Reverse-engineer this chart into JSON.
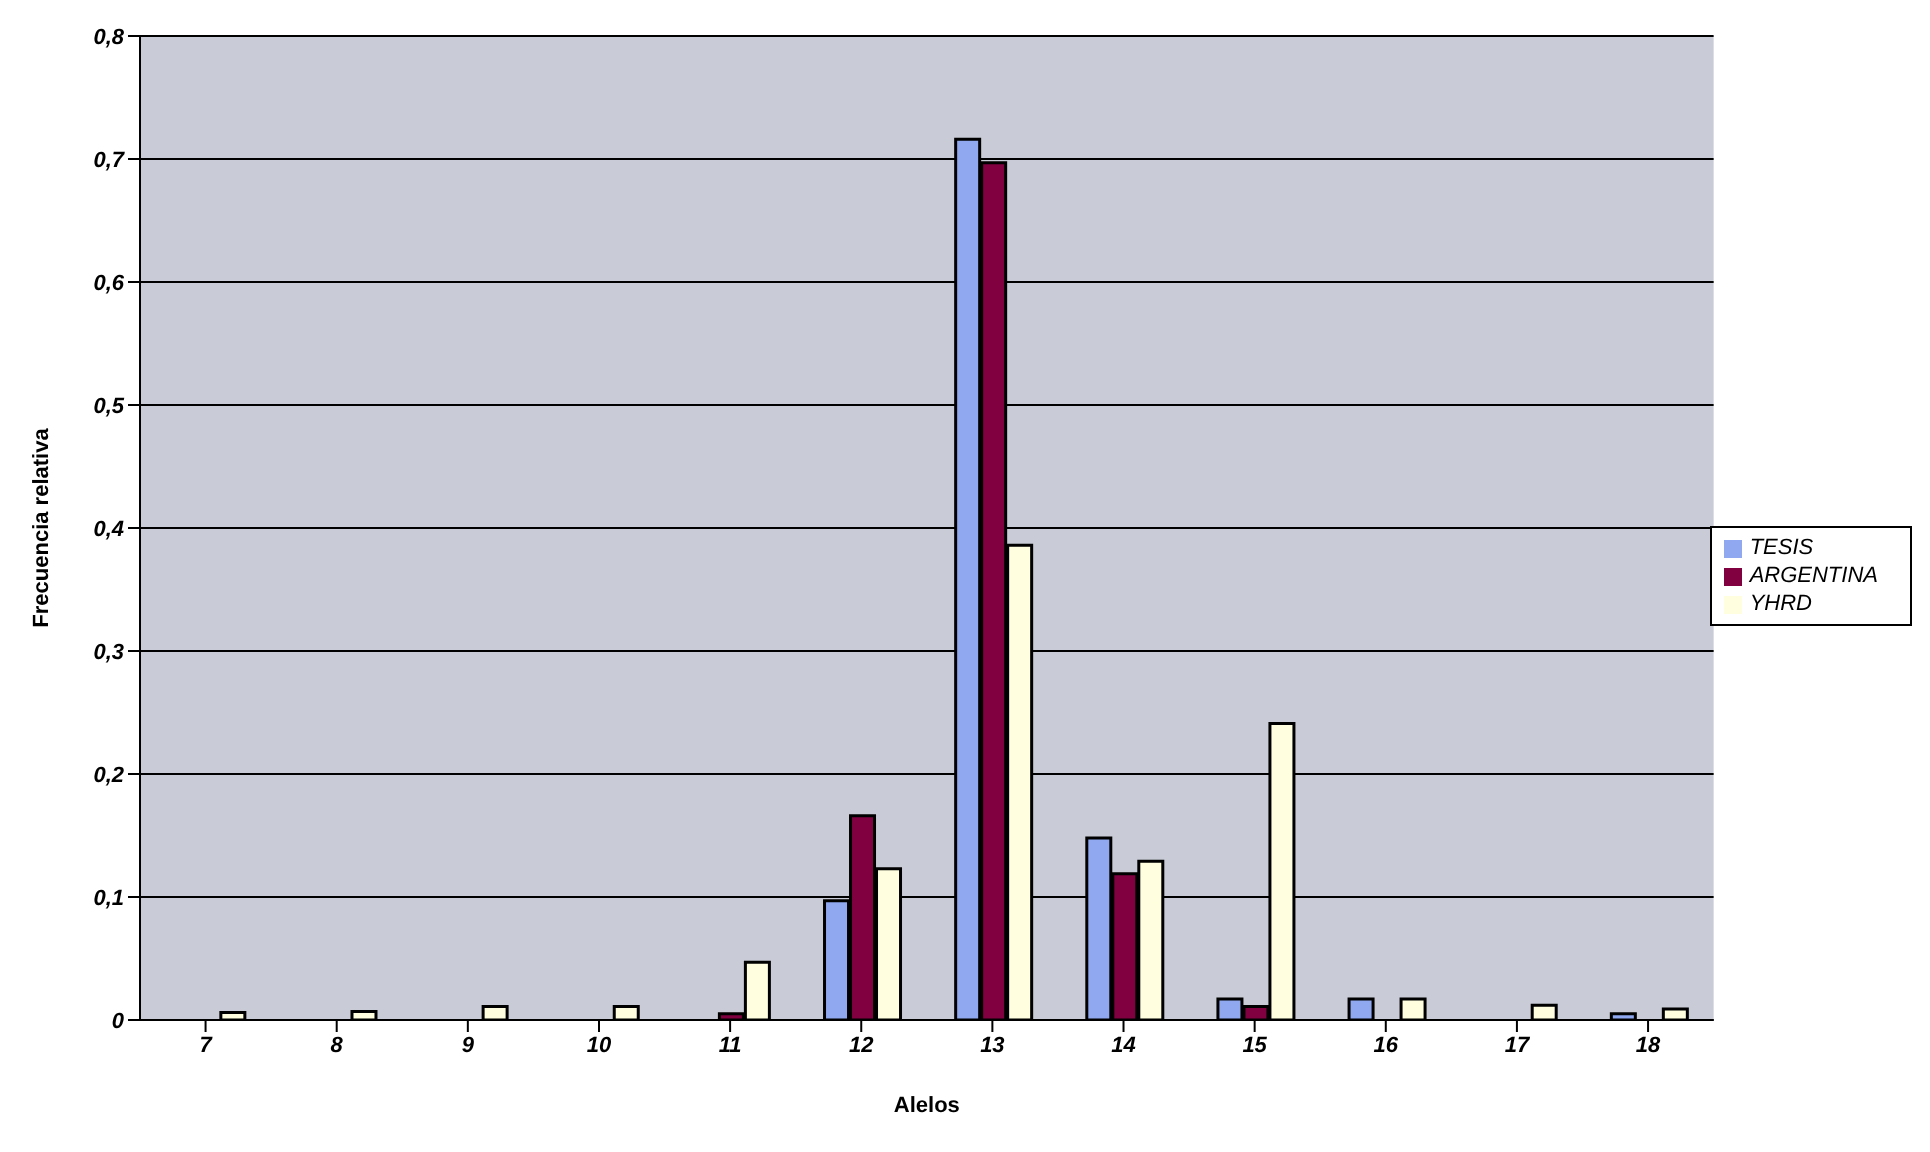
{
  "chart_data": {
    "type": "bar",
    "xlabel": "Alelos",
    "ylabel": "Frecuencia relativa",
    "categories": [
      "7",
      "8",
      "9",
      "10",
      "11",
      "12",
      "13",
      "14",
      "15",
      "16",
      "17",
      "18"
    ],
    "series": [
      {
        "name": "TESIS",
        "color": "#8fa8f0",
        "values": [
          0,
          0,
          null,
          null,
          0,
          0.097,
          0.716,
          0.148,
          0.017,
          0.017,
          0,
          0.005
        ]
      },
      {
        "name": "ARGENTINA",
        "color": "#800040",
        "values": [
          0,
          0,
          0,
          0,
          0.005,
          0.166,
          0.697,
          0.119,
          0.011,
          0,
          0,
          0
        ]
      },
      {
        "name": "YHRD",
        "color": "#ffffe0",
        "values": [
          0.006,
          0.007,
          0.011,
          0.011,
          0.047,
          0.123,
          0.386,
          0.129,
          0.241,
          0.017,
          0.012,
          0.009
        ]
      }
    ],
    "ylim": [
      0,
      0.8
    ],
    "yticks": [
      0,
      {
        "value": 0.1,
        "label": "0,1"
      },
      {
        "value": 0.2,
        "label": "0,2"
      },
      {
        "value": 0.3,
        "label": "0,3"
      },
      {
        "value": 0.4,
        "label": "0,4"
      },
      {
        "value": 0.5,
        "label": "0,5"
      },
      {
        "value": 0.6,
        "label": "0,6"
      },
      {
        "value": 0.7,
        "label": "0,7"
      },
      {
        "value": 0.8,
        "label": "0,8"
      }
    ],
    "grid": "y",
    "legend": "right"
  }
}
